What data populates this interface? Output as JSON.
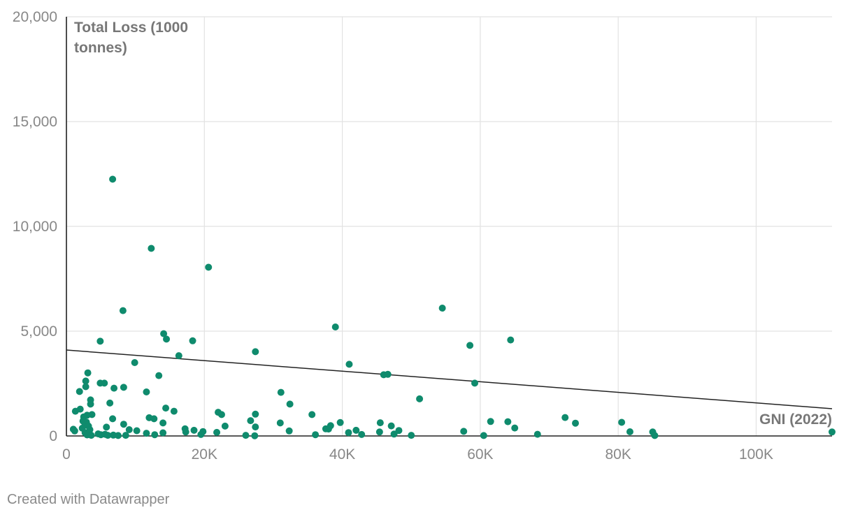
{
  "chart_data": {
    "type": "scatter",
    "xlabel": "GNI (2022)",
    "ylabel": "Total Loss (1000 tonnes)",
    "xlim": [
      0,
      111000
    ],
    "ylim": [
      0,
      20000
    ],
    "x_ticks": [
      0,
      20000,
      40000,
      60000,
      80000,
      100000
    ],
    "x_tick_labels": [
      "0",
      "20K",
      "40K",
      "60K",
      "80K",
      "100K"
    ],
    "y_ticks": [
      0,
      5000,
      10000,
      15000,
      20000
    ],
    "y_tick_labels": [
      "0",
      "5,000",
      "10,000",
      "15,000",
      "20,000"
    ],
    "grid": true,
    "point_color": "#0f8b6d",
    "trendline": {
      "x": [
        0,
        111000
      ],
      "y": [
        4100,
        1300
      ],
      "color": "#222222"
    },
    "points": [
      [
        6700,
        12250
      ],
      [
        12300,
        8950
      ],
      [
        20600,
        8050
      ],
      [
        8200,
        5980
      ],
      [
        54500,
        6100
      ],
      [
        39000,
        5200
      ],
      [
        14100,
        4880
      ],
      [
        4900,
        4520
      ],
      [
        14500,
        4620
      ],
      [
        18300,
        4540
      ],
      [
        64400,
        4580
      ],
      [
        58500,
        4320
      ],
      [
        27400,
        4020
      ],
      [
        16300,
        3830
      ],
      [
        41000,
        3420
      ],
      [
        9900,
        3500
      ],
      [
        46000,
        2920
      ],
      [
        46600,
        2940
      ],
      [
        13400,
        2880
      ],
      [
        3100,
        3010
      ],
      [
        59200,
        2520
      ],
      [
        2800,
        2620
      ],
      [
        4900,
        2520
      ],
      [
        5500,
        2520
      ],
      [
        2800,
        2350
      ],
      [
        8300,
        2320
      ],
      [
        6900,
        2280
      ],
      [
        1900,
        2120
      ],
      [
        11600,
        2100
      ],
      [
        31100,
        2080
      ],
      [
        3500,
        1720
      ],
      [
        51200,
        1770
      ],
      [
        6300,
        1570
      ],
      [
        3500,
        1520
      ],
      [
        32400,
        1520
      ],
      [
        14400,
        1330
      ],
      [
        1300,
        1180
      ],
      [
        2000,
        1280
      ],
      [
        15600,
        1180
      ],
      [
        3700,
        1020
      ],
      [
        22000,
        1130
      ],
      [
        27400,
        1040
      ],
      [
        35600,
        1020
      ],
      [
        22500,
        1020
      ],
      [
        2500,
        910
      ],
      [
        3000,
        990
      ],
      [
        12000,
        870
      ],
      [
        12700,
        820
      ],
      [
        6700,
        820
      ],
      [
        2900,
        660
      ],
      [
        26700,
        730
      ],
      [
        2400,
        710
      ],
      [
        72300,
        880
      ],
      [
        61500,
        690
      ],
      [
        64000,
        680
      ],
      [
        80500,
        650
      ],
      [
        73800,
        610
      ],
      [
        45500,
        630
      ],
      [
        31000,
        620
      ],
      [
        39700,
        640
      ],
      [
        14000,
        620
      ],
      [
        8300,
        560
      ],
      [
        2700,
        520
      ],
      [
        3200,
        470
      ],
      [
        5800,
        420
      ],
      [
        9100,
        300
      ],
      [
        10200,
        250
      ],
      [
        17200,
        340
      ],
      [
        18500,
        270
      ],
      [
        19800,
        210
      ],
      [
        23000,
        470
      ],
      [
        27400,
        430
      ],
      [
        38300,
        490
      ],
      [
        38000,
        330
      ],
      [
        47100,
        480
      ],
      [
        57600,
        220
      ],
      [
        65000,
        380
      ],
      [
        81700,
        200
      ],
      [
        85000,
        190
      ],
      [
        111000,
        190
      ],
      [
        37600,
        340
      ],
      [
        42000,
        270
      ],
      [
        48200,
        260
      ],
      [
        1000,
        320
      ],
      [
        1200,
        240
      ],
      [
        2700,
        160
      ],
      [
        3300,
        140
      ],
      [
        4600,
        100
      ],
      [
        5000,
        60
      ],
      [
        5600,
        80
      ],
      [
        6000,
        30
      ],
      [
        6800,
        40
      ],
      [
        7500,
        20
      ],
      [
        8600,
        30
      ],
      [
        11600,
        130
      ],
      [
        12800,
        60
      ],
      [
        14000,
        150
      ],
      [
        17300,
        190
      ],
      [
        19500,
        70
      ],
      [
        21800,
        170
      ],
      [
        26000,
        30
      ],
      [
        27300,
        10
      ],
      [
        32300,
        240
      ],
      [
        36100,
        60
      ],
      [
        40900,
        160
      ],
      [
        42800,
        70
      ],
      [
        45400,
        190
      ],
      [
        47500,
        90
      ],
      [
        50000,
        30
      ],
      [
        60500,
        20
      ],
      [
        68300,
        80
      ],
      [
        85300,
        20
      ],
      [
        3000,
        50
      ],
      [
        3600,
        30
      ],
      [
        2300,
        370
      ],
      [
        3400,
        300
      ]
    ]
  },
  "footer": {
    "credit": "Created with Datawrapper"
  }
}
